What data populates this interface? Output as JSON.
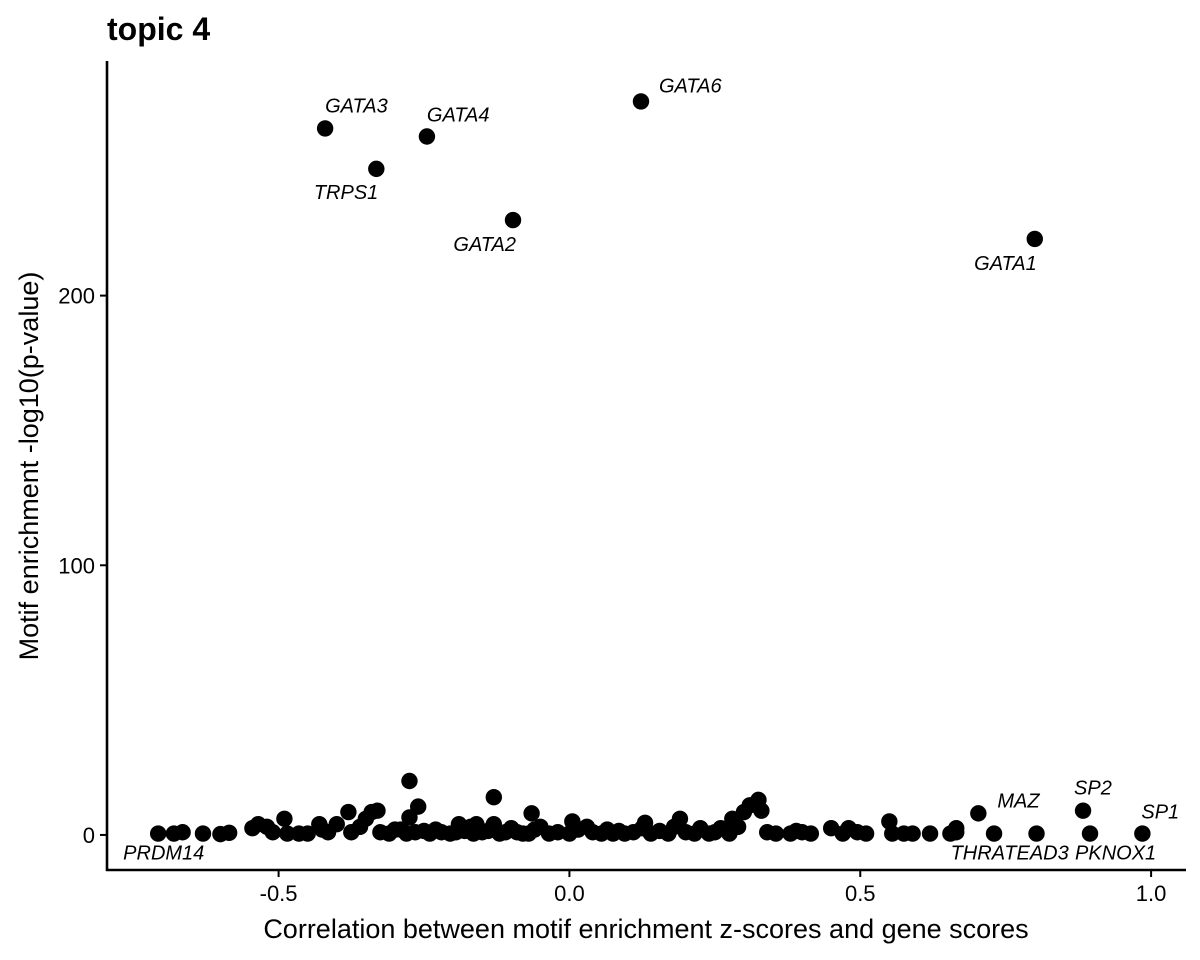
{
  "chart_data": {
    "type": "scatter",
    "title": "topic 4",
    "xlabel": "Correlation between motif enrichment z-scores and gene scores",
    "ylabel": "Motif enrichment -log10(p-value)",
    "xlim": [
      -0.795,
      1.06
    ],
    "ylim": [
      -13,
      287
    ],
    "x_ticks": [
      {
        "value": -0.5,
        "label": "-0.5"
      },
      {
        "value": 0.0,
        "label": "0.0"
      },
      {
        "value": 0.5,
        "label": "0.5"
      },
      {
        "value": 1.0,
        "label": "1.0"
      }
    ],
    "y_ticks": [
      {
        "value": 0,
        "label": "0"
      },
      {
        "value": 100,
        "label": "100"
      },
      {
        "value": 200,
        "label": "200"
      }
    ],
    "grid": false,
    "legend": "none",
    "point_color": "#000000",
    "labeled_points": [
      {
        "label": "GATA6",
        "x": 0.123,
        "y": 272
      },
      {
        "label": "GATA3",
        "x": -0.42,
        "y": 262
      },
      {
        "label": "GATA4",
        "x": -0.245,
        "y": 259
      },
      {
        "label": "TRPS1",
        "x": -0.332,
        "y": 247
      },
      {
        "label": "GATA2",
        "x": -0.097,
        "y": 228
      },
      {
        "label": "GATA1",
        "x": 0.8,
        "y": 221
      },
      {
        "label": "SP2",
        "x": 0.883,
        "y": 9
      },
      {
        "label": "MAZ",
        "x": 0.703,
        "y": 8
      },
      {
        "label": "SP1",
        "x": 0.985,
        "y": 0.5
      },
      {
        "label": "PRDM14",
        "x": -0.707,
        "y": 0.5
      },
      {
        "label": "THRA",
        "x": 0.73,
        "y": 0.5
      },
      {
        "label": "TEAD3",
        "x": 0.803,
        "y": 0.5
      },
      {
        "label": "PKNOX1",
        "x": 0.895,
        "y": 0.5
      }
    ],
    "points": [
      [
        -0.68,
        0.5
      ],
      [
        -0.665,
        1
      ],
      [
        -0.63,
        0.5
      ],
      [
        -0.6,
        0.3
      ],
      [
        -0.585,
        0.8
      ],
      [
        -0.545,
        2.5
      ],
      [
        -0.535,
        4
      ],
      [
        -0.52,
        3
      ],
      [
        -0.51,
        1
      ],
      [
        -0.49,
        6
      ],
      [
        -0.485,
        0.5
      ],
      [
        -0.465,
        0.5
      ],
      [
        -0.45,
        0.5
      ],
      [
        -0.43,
        4
      ],
      [
        -0.425,
        2
      ],
      [
        -0.415,
        1
      ],
      [
        -0.4,
        4
      ],
      [
        -0.38,
        8.5
      ],
      [
        -0.375,
        1
      ],
      [
        -0.36,
        3
      ],
      [
        -0.35,
        6
      ],
      [
        -0.34,
        8.5
      ],
      [
        -0.33,
        9
      ],
      [
        -0.325,
        1
      ],
      [
        -0.31,
        0.5
      ],
      [
        -0.3,
        2
      ],
      [
        -0.29,
        2
      ],
      [
        -0.28,
        0.5
      ],
      [
        -0.275,
        6.5
      ],
      [
        -0.275,
        20
      ],
      [
        -0.265,
        1
      ],
      [
        -0.26,
        10.5
      ],
      [
        -0.25,
        1.5
      ],
      [
        -0.24,
        0.5
      ],
      [
        -0.23,
        2
      ],
      [
        -0.22,
        1
      ],
      [
        -0.205,
        0.5
      ],
      [
        -0.195,
        1
      ],
      [
        -0.19,
        4
      ],
      [
        -0.18,
        1.5
      ],
      [
        -0.17,
        3
      ],
      [
        -0.165,
        0.5
      ],
      [
        -0.16,
        4
      ],
      [
        -0.15,
        1
      ],
      [
        -0.14,
        1.5
      ],
      [
        -0.13,
        14
      ],
      [
        -0.13,
        4
      ],
      [
        -0.12,
        0.5
      ],
      [
        -0.11,
        1
      ],
      [
        -0.1,
        2.5
      ],
      [
        -0.09,
        1
      ],
      [
        -0.08,
        0.5
      ],
      [
        -0.07,
        0.5
      ],
      [
        -0.065,
        8
      ],
      [
        -0.06,
        2
      ],
      [
        -0.05,
        3
      ],
      [
        -0.035,
        0.5
      ],
      [
        -0.02,
        1
      ],
      [
        0.0,
        0.5
      ],
      [
        0.005,
        5
      ],
      [
        0.015,
        2
      ],
      [
        0.03,
        3
      ],
      [
        0.04,
        1
      ],
      [
        0.055,
        0.5
      ],
      [
        0.065,
        2
      ],
      [
        0.075,
        0.5
      ],
      [
        0.085,
        1.5
      ],
      [
        0.095,
        0.5
      ],
      [
        0.11,
        1
      ],
      [
        0.125,
        2.5
      ],
      [
        0.13,
        4.5
      ],
      [
        0.14,
        0.5
      ],
      [
        0.155,
        1.5
      ],
      [
        0.17,
        0.5
      ],
      [
        0.18,
        3
      ],
      [
        0.19,
        6
      ],
      [
        0.2,
        1
      ],
      [
        0.215,
        0.5
      ],
      [
        0.225,
        2.5
      ],
      [
        0.24,
        0.5
      ],
      [
        0.25,
        1
      ],
      [
        0.26,
        2.5
      ],
      [
        0.275,
        0.5
      ],
      [
        0.28,
        6
      ],
      [
        0.29,
        3
      ],
      [
        0.3,
        8.5
      ],
      [
        0.31,
        11
      ],
      [
        0.325,
        13
      ],
      [
        0.33,
        9
      ],
      [
        0.34,
        1
      ],
      [
        0.355,
        0.5
      ],
      [
        0.38,
        0.5
      ],
      [
        0.39,
        1.5
      ],
      [
        0.4,
        1
      ],
      [
        0.415,
        0.5
      ],
      [
        0.45,
        2.5
      ],
      [
        0.47,
        0.5
      ],
      [
        0.48,
        2.5
      ],
      [
        0.495,
        1
      ],
      [
        0.51,
        0.5
      ],
      [
        0.55,
        5
      ],
      [
        0.555,
        0.5
      ],
      [
        0.575,
        0.5
      ],
      [
        0.59,
        0.5
      ],
      [
        0.62,
        0.5
      ],
      [
        0.655,
        0.5
      ],
      [
        0.665,
        2.5
      ],
      [
        0.665,
        1
      ]
    ]
  }
}
